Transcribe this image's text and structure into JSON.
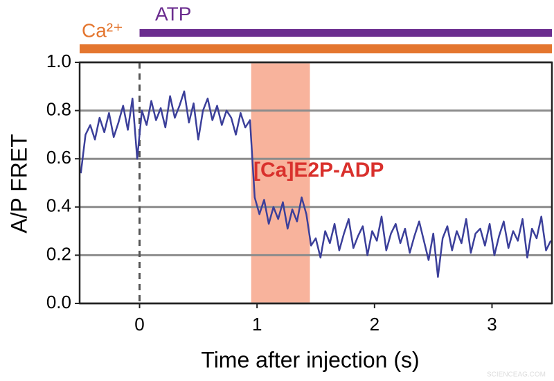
{
  "chart_data": {
    "type": "line",
    "xlabel": "Time after injection (s)",
    "ylabel": "A/P FRET",
    "annotations": [
      {
        "text": "ATP",
        "color": "#6b2d8f"
      },
      {
        "text": "Ca²⁺",
        "color": "#e4762f"
      },
      {
        "text": "[Ca]E2P-ADP",
        "color": "#d9302c"
      }
    ],
    "watermark": "SCIENCEAG.COM",
    "highlight": {
      "x": [
        0.95,
        1.45
      ],
      "color": "#f8b39c"
    },
    "vline": 0,
    "xlim": [
      -0.51,
      3.51
    ],
    "xticks": [
      0,
      1,
      2,
      3
    ],
    "ylim": [
      0,
      1
    ],
    "yticks": [
      {
        "value": 0,
        "label": "0.0"
      },
      0.2,
      0.4,
      0.6,
      0.8,
      {
        "value": 1,
        "label": "1.0"
      }
    ],
    "grid": true,
    "x": [
      -0.5,
      -0.46,
      -0.42,
      -0.38,
      -0.34,
      -0.3,
      -0.26,
      -0.22,
      -0.18,
      -0.14,
      -0.1,
      -0.06,
      -0.02,
      0.02,
      0.06,
      0.1,
      0.14,
      0.18,
      0.22,
      0.26,
      0.3,
      0.34,
      0.38,
      0.42,
      0.46,
      0.5,
      0.54,
      0.58,
      0.62,
      0.66,
      0.7,
      0.74,
      0.78,
      0.82,
      0.86,
      0.9,
      0.94,
      0.98,
      1.02,
      1.06,
      1.1,
      1.14,
      1.18,
      1.22,
      1.26,
      1.3,
      1.34,
      1.38,
      1.42,
      1.46,
      1.5,
      1.54,
      1.58,
      1.62,
      1.66,
      1.7,
      1.74,
      1.78,
      1.82,
      1.86,
      1.9,
      1.94,
      1.98,
      2.02,
      2.06,
      2.1,
      2.14,
      2.18,
      2.22,
      2.26,
      2.3,
      2.34,
      2.38,
      2.42,
      2.46,
      2.5,
      2.54,
      2.58,
      2.62,
      2.66,
      2.7,
      2.74,
      2.78,
      2.82,
      2.86,
      2.9,
      2.94,
      2.98,
      3.02,
      3.06,
      3.1,
      3.14,
      3.18,
      3.22,
      3.26,
      3.3,
      3.34,
      3.38,
      3.42,
      3.46,
      3.5
    ],
    "series": [
      {
        "color": "#3b3f9a",
        "values": [
          0.54,
          0.7,
          0.74,
          0.68,
          0.77,
          0.71,
          0.79,
          0.69,
          0.75,
          0.82,
          0.72,
          0.85,
          0.6,
          0.8,
          0.74,
          0.84,
          0.76,
          0.81,
          0.73,
          0.86,
          0.77,
          0.82,
          0.88,
          0.75,
          0.83,
          0.68,
          0.8,
          0.85,
          0.76,
          0.82,
          0.74,
          0.8,
          0.77,
          0.7,
          0.79,
          0.73,
          0.76,
          0.44,
          0.37,
          0.43,
          0.33,
          0.4,
          0.35,
          0.42,
          0.31,
          0.39,
          0.34,
          0.44,
          0.37,
          0.24,
          0.27,
          0.19,
          0.3,
          0.25,
          0.33,
          0.22,
          0.29,
          0.35,
          0.23,
          0.28,
          0.32,
          0.2,
          0.3,
          0.26,
          0.36,
          0.22,
          0.29,
          0.33,
          0.25,
          0.31,
          0.21,
          0.28,
          0.34,
          0.26,
          0.18,
          0.29,
          0.11,
          0.27,
          0.32,
          0.22,
          0.3,
          0.25,
          0.35,
          0.21,
          0.29,
          0.31,
          0.24,
          0.33,
          0.2,
          0.28,
          0.34,
          0.23,
          0.3,
          0.26,
          0.35,
          0.19,
          0.31,
          0.27,
          0.36,
          0.22,
          0.26
        ]
      }
    ]
  }
}
